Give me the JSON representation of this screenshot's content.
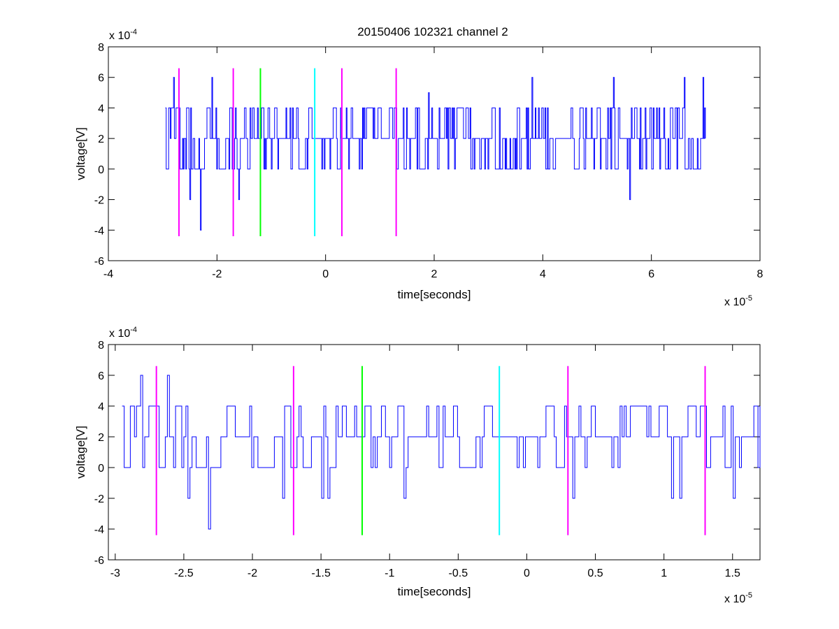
{
  "figure_title": "20150406 102321 channel 2",
  "chart_data": [
    {
      "type": "line",
      "title": "20150406 102321 channel 2",
      "xlabel": "time[seconds]",
      "ylabel": "voltage[V]",
      "x_multiplier": "x 10",
      "x_exponent": "-5",
      "y_multiplier": "x 10",
      "y_exponent": "-4",
      "xlim": [
        -4,
        8
      ],
      "ylim": [
        -6,
        8
      ],
      "xticks": [
        "-4",
        "-2",
        "0",
        "2",
        "4",
        "6",
        "8"
      ],
      "yticks": [
        "-6",
        "-4",
        "-2",
        "0",
        "2",
        "4",
        "6",
        "8"
      ],
      "grid": false,
      "series": [
        {
          "color": "#0000ff",
          "x_range": [
            -2.95,
            7.0
          ],
          "levels": [
            -4,
            -2,
            0,
            2,
            4,
            6
          ],
          "typical_range": [
            0,
            4
          ],
          "outliers": [
            {
              "x": -2.8,
              "y": 6
            },
            {
              "x": -2.5,
              "y": -2
            },
            {
              "x": -2.3,
              "y": -4
            },
            {
              "x": -2.1,
              "y": 6
            },
            {
              "x": -1.6,
              "y": -2
            },
            {
              "x": 1.9,
              "y": 5
            },
            {
              "x": 3.8,
              "y": 6
            },
            {
              "x": 5.3,
              "y": 6
            },
            {
              "x": 5.6,
              "y": -2
            },
            {
              "x": 6.6,
              "y": 6
            },
            {
              "x": 6.95,
              "y": 6
            }
          ]
        }
      ],
      "markers": [
        {
          "x": -2.7,
          "color": "#ff00ff",
          "y": [
            -4.4,
            6.6
          ]
        },
        {
          "x": -1.7,
          "color": "#ff00ff",
          "y": [
            -4.4,
            6.6
          ]
        },
        {
          "x": -1.2,
          "color": "#00ff00",
          "y": [
            -4.4,
            6.6
          ]
        },
        {
          "x": -0.2,
          "color": "#00ffff",
          "y": [
            -4.4,
            6.6
          ]
        },
        {
          "x": 0.3,
          "color": "#ff00ff",
          "y": [
            -4.4,
            6.6
          ]
        },
        {
          "x": 1.3,
          "color": "#ff00ff",
          "y": [
            -4.4,
            6.6
          ]
        }
      ]
    },
    {
      "type": "line",
      "title": "",
      "xlabel": "time[seconds]",
      "ylabel": "voltage[V]",
      "x_multiplier": "x 10",
      "x_exponent": "-5",
      "y_multiplier": "x 10",
      "y_exponent": "-4",
      "xlim": [
        -3.05,
        1.7
      ],
      "ylim": [
        -6,
        8
      ],
      "xticks": [
        "-3",
        "-2.5",
        "-2",
        "-1.5",
        "-1",
        "-0.5",
        "0",
        "0.5",
        "1",
        "1.5"
      ],
      "yticks": [
        "-6",
        "-4",
        "-2",
        "0",
        "2",
        "4",
        "6",
        "8"
      ],
      "grid": false,
      "series": [
        {
          "color": "#0000ff",
          "x_range": [
            -2.95,
            1.7
          ],
          "levels": [
            -4,
            -2,
            0,
            2,
            4,
            6
          ],
          "typical_range": [
            0,
            4
          ],
          "outliers": [
            {
              "x": -2.82,
              "y": 6
            },
            {
              "x": -2.62,
              "y": 6
            },
            {
              "x": -2.47,
              "y": -2
            },
            {
              "x": -2.32,
              "y": -4
            },
            {
              "x": -1.78,
              "y": -2
            },
            {
              "x": -1.5,
              "y": -2
            },
            {
              "x": -1.45,
              "y": -2
            },
            {
              "x": -0.9,
              "y": -2
            },
            {
              "x": 0.34,
              "y": -2
            },
            {
              "x": 1.05,
              "y": -2
            },
            {
              "x": 1.12,
              "y": -2
            },
            {
              "x": 1.5,
              "y": -2
            }
          ]
        }
      ],
      "markers": [
        {
          "x": -2.7,
          "color": "#ff00ff",
          "y": [
            -4.4,
            6.6
          ]
        },
        {
          "x": -1.7,
          "color": "#ff00ff",
          "y": [
            -4.4,
            6.6
          ]
        },
        {
          "x": -1.2,
          "color": "#00ff00",
          "y": [
            -4.4,
            6.6
          ]
        },
        {
          "x": -0.2,
          "color": "#00ffff",
          "y": [
            -4.4,
            6.6
          ]
        },
        {
          "x": 0.3,
          "color": "#ff00ff",
          "y": [
            -4.4,
            6.6
          ]
        },
        {
          "x": 1.3,
          "color": "#ff00ff",
          "y": [
            -4.4,
            6.6
          ]
        }
      ]
    }
  ]
}
